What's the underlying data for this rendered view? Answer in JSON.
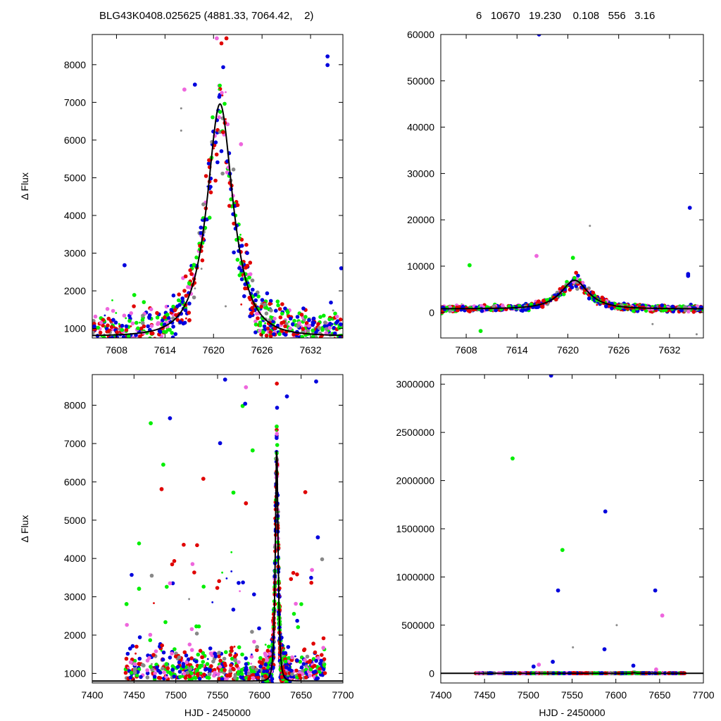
{
  "header": {
    "left": "BLG43K0408.025625 (4881.33, 7064.42,    2)",
    "right": "6   10670   19.230    0.108   556   3.16"
  },
  "colors": {
    "blue": "#0000dd",
    "red": "#e00000",
    "green": "#00ee00",
    "magenta": "#ee66dd",
    "gray": "#888888",
    "model": "#000000"
  },
  "chart_data": [
    {
      "id": "top-left",
      "type": "scatter",
      "xlabel": "",
      "ylabel": "Δ Flux",
      "xlim": [
        7605,
        7636
      ],
      "ylim": [
        750,
        8800
      ],
      "xticks": [
        7608,
        7614,
        7620,
        7626,
        7632
      ],
      "yticks": [
        1000,
        2000,
        3000,
        4000,
        5000,
        6000,
        7000,
        8000
      ],
      "model": {
        "t0": 7620.8,
        "u0": 0.108,
        "tE": 3.16,
        "base": 10670,
        "scale": 7600,
        "offset": -10430
      },
      "outliers": [
        {
          "x": 7609.0,
          "y": 2680,
          "c": "blue"
        },
        {
          "x": 7634.1,
          "y": 8220,
          "c": "blue"
        },
        {
          "x": 7634.1,
          "y": 7990,
          "c": "blue"
        },
        {
          "x": 7635.8,
          "y": 2600,
          "c": "blue"
        },
        {
          "x": 7620.4,
          "y": 8700,
          "c": "magenta"
        },
        {
          "x": 7621.6,
          "y": 8700,
          "c": "red"
        },
        {
          "x": 7616.4,
          "y": 7340,
          "c": "magenta"
        },
        {
          "x": 7617.7,
          "y": 7470,
          "c": "blue"
        },
        {
          "x": 7623.4,
          "y": 5890,
          "c": "magenta"
        },
        {
          "x": 7616.0,
          "y": 6840,
          "c": "gray"
        },
        {
          "x": 7616.0,
          "y": 6250,
          "c": "gray"
        },
        {
          "x": 7621.5,
          "y": 1590,
          "c": "gray"
        },
        {
          "x": 7634.8,
          "y": 1480,
          "c": "gray"
        },
        {
          "x": 7610.2,
          "y": 1890,
          "c": "green"
        }
      ]
    },
    {
      "id": "top-right",
      "type": "scatter",
      "xlabel": "",
      "ylabel": "",
      "xlim": [
        7605,
        7636
      ],
      "ylim": [
        -5500,
        60000
      ],
      "xticks": [
        7608,
        7614,
        7620,
        7626,
        7632
      ],
      "yticks": [
        0,
        10000,
        20000,
        30000,
        40000,
        50000,
        60000
      ],
      "model": {
        "t0": 7620.8,
        "u0": 0.108,
        "tE": 3.16,
        "base": 10670,
        "scale": 7600,
        "offset": -10430
      },
      "outliers": [
        {
          "x": 7616.6,
          "y": 60000,
          "c": "blue"
        },
        {
          "x": 7634.4,
          "y": 22600,
          "c": "blue"
        },
        {
          "x": 7634.2,
          "y": 8300,
          "c": "blue"
        },
        {
          "x": 7634.2,
          "y": 7900,
          "c": "blue"
        },
        {
          "x": 7608.4,
          "y": 10200,
          "c": "green"
        },
        {
          "x": 7609.7,
          "y": -4000,
          "c": "green"
        },
        {
          "x": 7616.3,
          "y": 12200,
          "c": "magenta"
        },
        {
          "x": 7622.6,
          "y": 18700,
          "c": "gray"
        },
        {
          "x": 7630.0,
          "y": -2500,
          "c": "gray"
        },
        {
          "x": 7635.2,
          "y": -4700,
          "c": "gray"
        },
        {
          "x": 7620.6,
          "y": 11800,
          "c": "green"
        }
      ]
    },
    {
      "id": "bottom-left",
      "type": "scatter",
      "xlabel": "HJD - 2450000",
      "ylabel": "Δ Flux",
      "xlim": [
        7400,
        7700
      ],
      "ylim": [
        750,
        8800
      ],
      "xticks": [
        7400,
        7450,
        7500,
        7550,
        7600,
        7650,
        7700
      ],
      "yticks": [
        1000,
        2000,
        3000,
        4000,
        5000,
        6000,
        7000,
        8000
      ],
      "model": {
        "t0": 7620.8,
        "u0": 0.108,
        "tE": 3.16,
        "base": 10670,
        "scale": 7600,
        "offset": -10430
      },
      "outliers": [
        {
          "x": 7470,
          "y": 7530,
          "c": "green"
        },
        {
          "x": 7493,
          "y": 7660,
          "c": "blue"
        },
        {
          "x": 7559,
          "y": 8670,
          "c": "blue"
        },
        {
          "x": 7584,
          "y": 8470,
          "c": "magenta"
        },
        {
          "x": 7580,
          "y": 7980,
          "c": "green"
        },
        {
          "x": 7583,
          "y": 8040,
          "c": "blue"
        },
        {
          "x": 7633,
          "y": 8230,
          "c": "blue"
        },
        {
          "x": 7668,
          "y": 8620,
          "c": "blue"
        },
        {
          "x": 7485,
          "y": 6450,
          "c": "green"
        },
        {
          "x": 7483,
          "y": 5810,
          "c": "red"
        },
        {
          "x": 7553,
          "y": 7010,
          "c": "blue"
        },
        {
          "x": 7592,
          "y": 6820,
          "c": "green"
        },
        {
          "x": 7655,
          "y": 5730,
          "c": "red"
        },
        {
          "x": 7670,
          "y": 4550,
          "c": "blue"
        },
        {
          "x": 7441,
          "y": 2810,
          "c": "green"
        },
        {
          "x": 7456,
          "y": 3210,
          "c": "green"
        },
        {
          "x": 7533,
          "y": 6080,
          "c": "red"
        },
        {
          "x": 7569,
          "y": 5720,
          "c": "green"
        },
        {
          "x": 7584,
          "y": 5440,
          "c": "red"
        },
        {
          "x": 7663,
          "y": 3700,
          "c": "magenta"
        }
      ]
    },
    {
      "id": "bottom-right",
      "type": "scatter",
      "xlabel": "HJD - 2450000",
      "ylabel": "",
      "xlim": [
        7400,
        7700
      ],
      "ylim": [
        -100000,
        3100000
      ],
      "xticks": [
        7400,
        7450,
        7500,
        7550,
        7600,
        7650,
        7700
      ],
      "yticks": [
        0,
        500000,
        1000000,
        1500000,
        2000000,
        2500000,
        3000000
      ],
      "model": {
        "t0": 7620.8,
        "u0": 0.108,
        "tE": 3.16,
        "base": 10670,
        "scale": 7600,
        "offset": -10430
      },
      "outliers": [
        {
          "x": 7526,
          "y": 3090000,
          "c": "blue"
        },
        {
          "x": 7482,
          "y": 2230000,
          "c": "green"
        },
        {
          "x": 7588,
          "y": 1680000,
          "c": "blue"
        },
        {
          "x": 7539,
          "y": 1280000,
          "c": "green"
        },
        {
          "x": 7534,
          "y": 860000,
          "c": "blue"
        },
        {
          "x": 7645,
          "y": 860000,
          "c": "blue"
        },
        {
          "x": 7653,
          "y": 600000,
          "c": "magenta"
        },
        {
          "x": 7601,
          "y": 500000,
          "c": "gray"
        },
        {
          "x": 7587,
          "y": 250000,
          "c": "blue"
        },
        {
          "x": 7551,
          "y": 270000,
          "c": "gray"
        },
        {
          "x": 7528,
          "y": 120000,
          "c": "blue"
        },
        {
          "x": 7506,
          "y": 70000,
          "c": "blue"
        },
        {
          "x": 7512,
          "y": 90000,
          "c": "magenta"
        },
        {
          "x": 7620,
          "y": 80000,
          "c": "blue"
        },
        {
          "x": 7646,
          "y": 40000,
          "c": "magenta"
        }
      ]
    }
  ]
}
